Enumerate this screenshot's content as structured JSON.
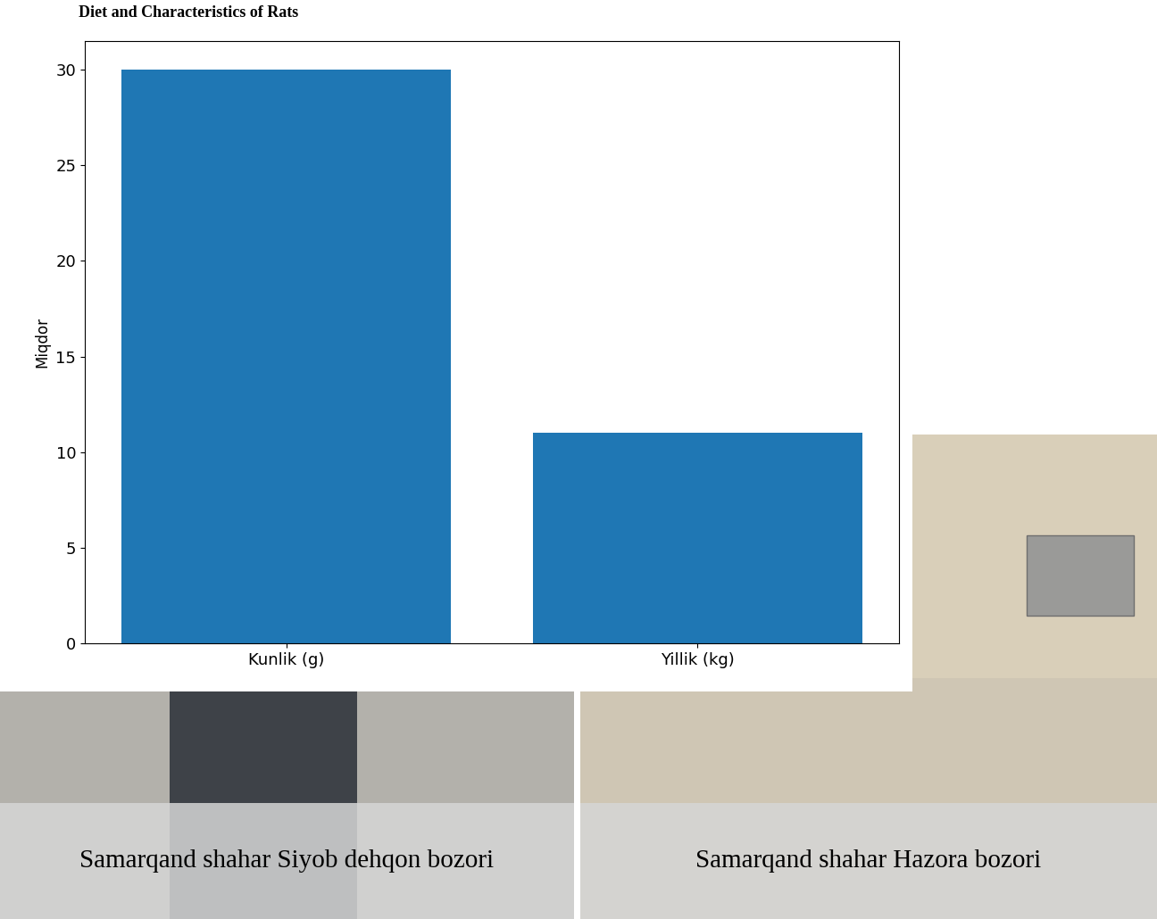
{
  "chart_data": {
    "type": "bar",
    "title": "Diet and Characteristics of Rats",
    "ylabel": "Miqdor",
    "categories": [
      "Kunlik (g)",
      "Yillik (kg)"
    ],
    "values": [
      30,
      11
    ],
    "color": "#1f77b4",
    "ylim": [
      0,
      31.5
    ],
    "yticks": [
      0,
      5,
      10,
      15,
      20,
      25,
      30
    ],
    "grid": false
  },
  "photos": [
    {
      "caption": "Samarqand shahar Siyob dehqon bozori"
    },
    {
      "caption": "Samarqand shahar Hazora bozori"
    }
  ]
}
